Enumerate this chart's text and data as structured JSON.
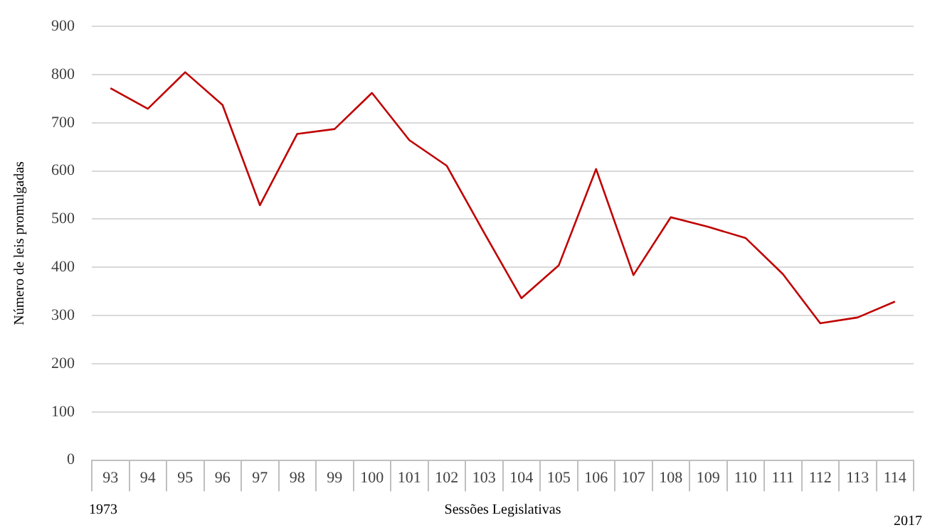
{
  "chart_data": {
    "type": "line",
    "xlabel": "Sessões Legislativas",
    "ylabel": "Número de leis promulgadas",
    "categories": [
      "93",
      "94",
      "95",
      "96",
      "97",
      "98",
      "99",
      "100",
      "101",
      "102",
      "103",
      "104",
      "105",
      "106",
      "107",
      "108",
      "109",
      "110",
      "111",
      "112",
      "113",
      "114"
    ],
    "series": [
      {
        "color": "#c00000",
        "values": [
          772,
          729,
          805,
          737,
          529,
          677,
          687,
          762,
          664,
          611,
          472,
          336,
          404,
          604,
          384,
          504,
          484,
          461,
          386,
          284,
          296,
          329
        ]
      }
    ],
    "ylim": [
      0,
      900
    ],
    "yticks": [
      0,
      100,
      200,
      300,
      400,
      500,
      600,
      700,
      800,
      900
    ],
    "grid": "y",
    "legend": false,
    "marker": "none",
    "line_style": "solid",
    "annotations": [
      "1973",
      "2017"
    ]
  }
}
